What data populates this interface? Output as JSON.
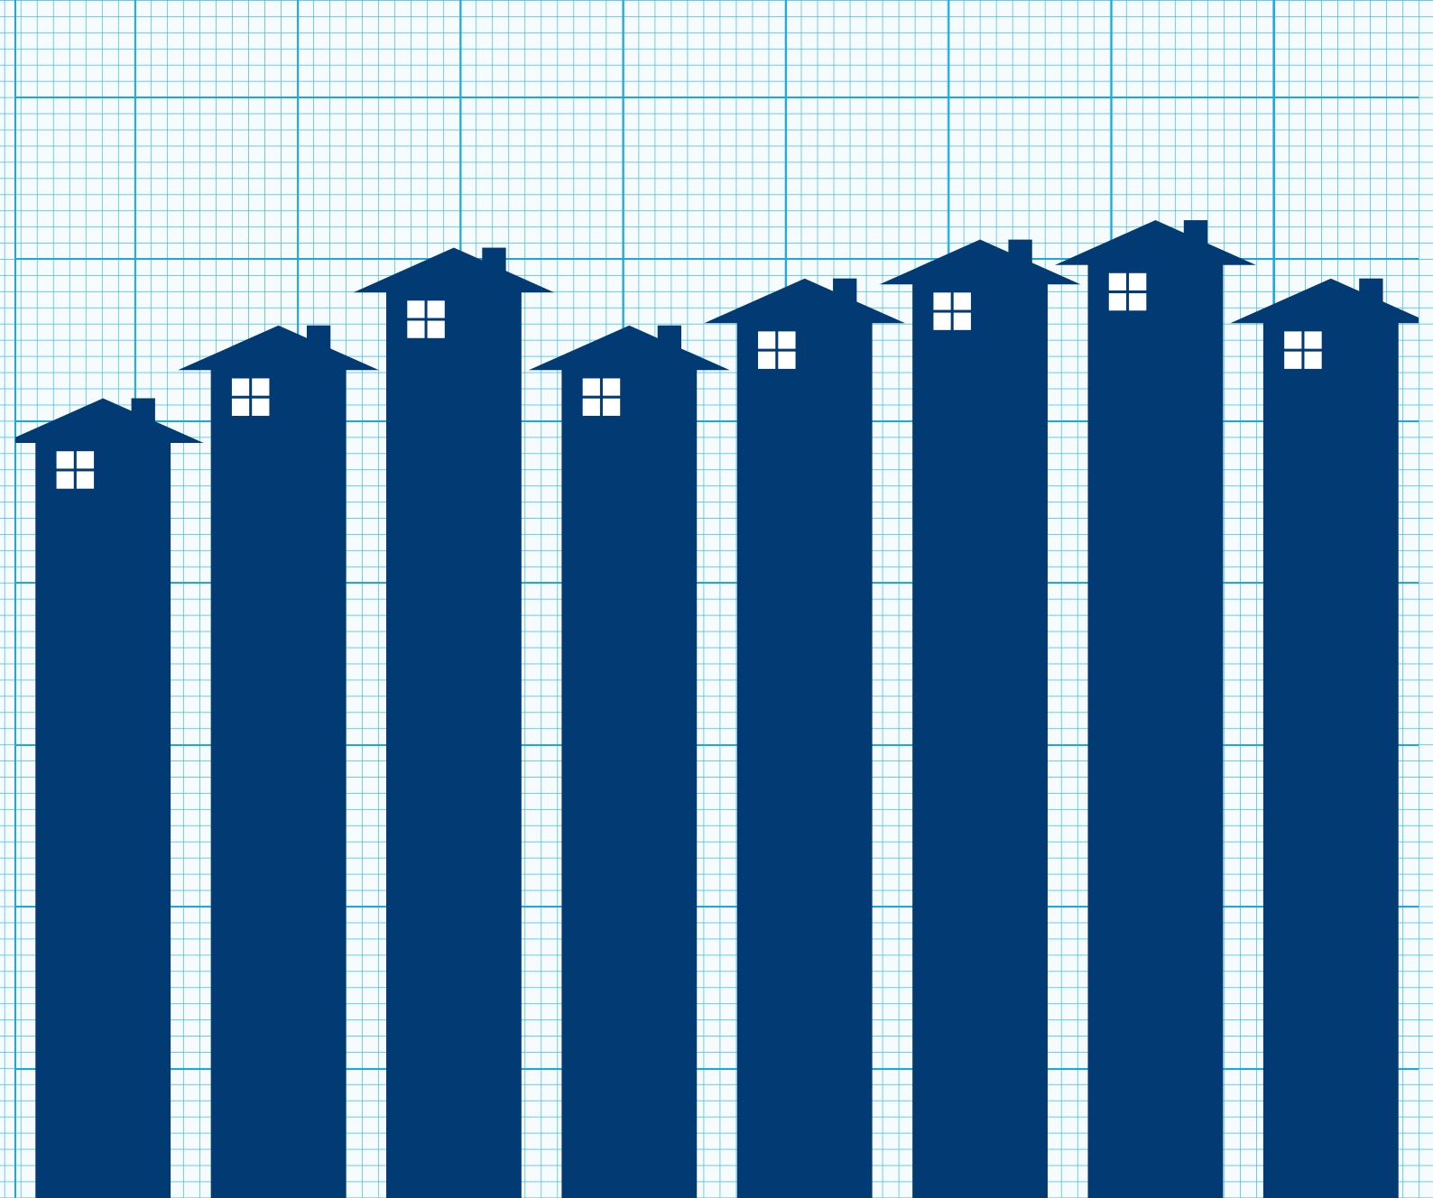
{
  "chart_data": {
    "type": "bar",
    "categories": [
      null,
      null,
      null,
      null,
      null,
      null,
      null,
      null
    ],
    "values": [
      51.4,
      55.9,
      60.7,
      55.9,
      58.8,
      61.2,
      62.4,
      58.8
    ],
    "color": "#023b74",
    "marker": "house",
    "ylim": [
      2,
      76
    ],
    "yticks": [
      10,
      20,
      30,
      40,
      50,
      60,
      70
    ],
    "grid": true,
    "tick_labels": false
  }
}
